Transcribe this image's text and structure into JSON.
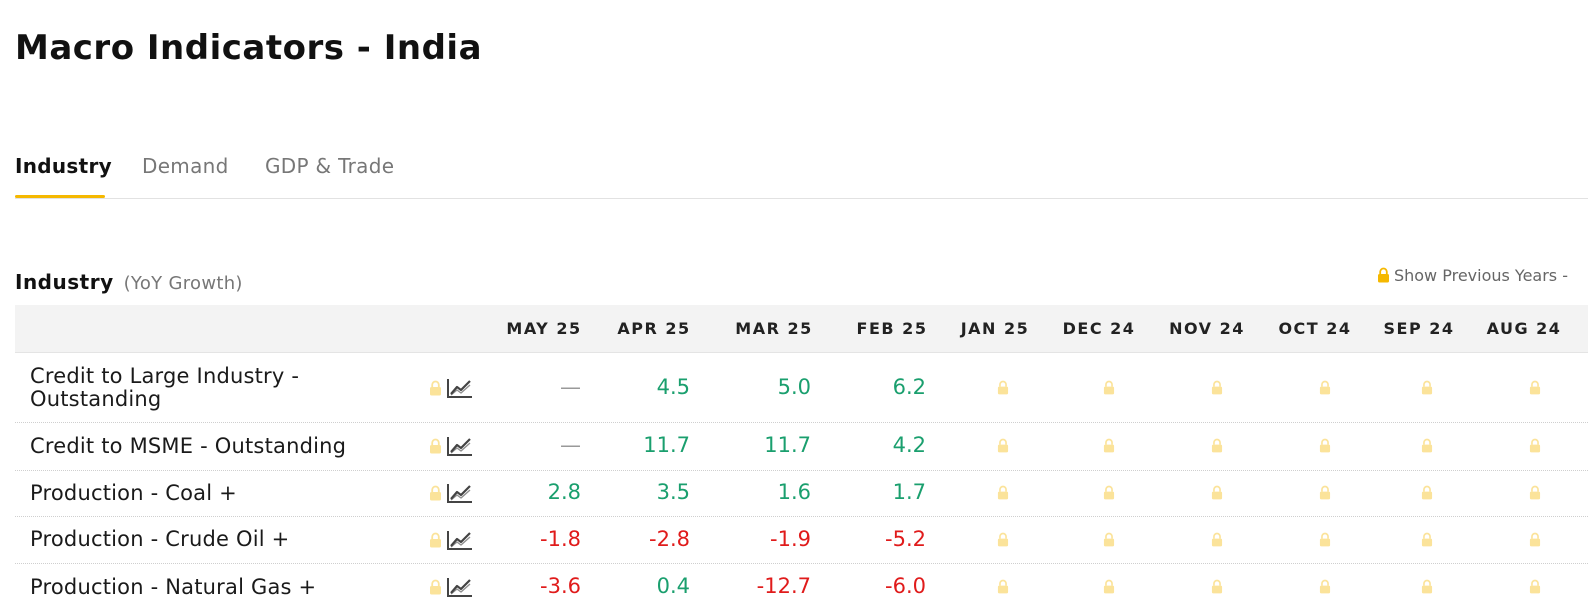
{
  "page_title": "Macro Indicators - India",
  "tabs": [
    {
      "label": "Industry",
      "active": true
    },
    {
      "label": "Demand",
      "active": false
    },
    {
      "label": "GDP & Trade",
      "active": false
    }
  ],
  "section": {
    "title": "Industry",
    "subtitle": "(YoY Growth)",
    "show_previous_years": "Show Previous Years -"
  },
  "columns": [
    "MAY 25",
    "APR 25",
    "MAR 25",
    "FEB 25",
    "JAN 25",
    "DEC 24",
    "NOV 24",
    "OCT 24",
    "SEP 24",
    "AUG 24"
  ],
  "rows": [
    {
      "label_lines": [
        "Credit to Large Industry -",
        "Outstanding"
      ],
      "values": [
        "—",
        "4.5",
        "5.0",
        "6.2"
      ],
      "kinds": [
        "na",
        "pos",
        "pos",
        "pos"
      ]
    },
    {
      "label_lines": [
        "Credit to MSME - Outstanding"
      ],
      "values": [
        "—",
        "11.7",
        "11.7",
        "4.2"
      ],
      "kinds": [
        "na",
        "pos",
        "pos",
        "pos"
      ]
    },
    {
      "label_lines": [
        "Production - Coal +"
      ],
      "values": [
        "2.8",
        "3.5",
        "1.6",
        "1.7"
      ],
      "kinds": [
        "pos",
        "pos",
        "pos",
        "pos"
      ]
    },
    {
      "label_lines": [
        "Production - Crude Oil +"
      ],
      "values": [
        "-1.8",
        "-2.8",
        "-1.9",
        "-5.2"
      ],
      "kinds": [
        "neg",
        "neg",
        "neg",
        "neg"
      ]
    },
    {
      "label_lines": [
        "Production - Natural Gas +"
      ],
      "values": [
        "-3.6",
        "0.4",
        "-12.7",
        "-6.0"
      ],
      "kinds": [
        "neg",
        "pos",
        "neg",
        "neg"
      ]
    }
  ],
  "colors": {
    "accent": "#f5b800",
    "positive": "#1a9f6e",
    "negative": "#e01b1b",
    "lock_gold": "#f5b800",
    "lock_faded": "#fbe39a"
  },
  "icons": {
    "row_lock": "lock-icon",
    "row_chart": "line-chart-icon",
    "locked_cell": "lock-icon"
  }
}
